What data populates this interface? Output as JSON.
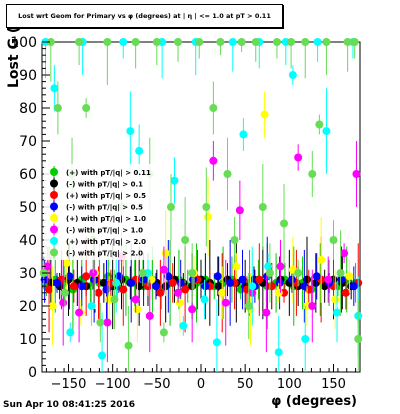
{
  "title": "Lost wrt Geom for Primary vs φ (degrees) at | η | <= 1.0 at pT > 0.11",
  "timestamp": "Sun Apr 10 08:41:25 2016",
  "chart_data": {
    "type": "scatter",
    "title": "Lost wrt Geom for Primary vs φ (degrees) at | η | <= 1.0 at pT > 0.11",
    "xlabel": "φ (degrees)",
    "ylabel": "Lost G (%)",
    "xlim": [
      -180,
      180
    ],
    "ylim": [
      0,
      100
    ],
    "xticks": [
      -150,
      -100,
      -50,
      0,
      50,
      100,
      150
    ],
    "xtick_labels": [
      "−150",
      "−100",
      "−50",
      "0",
      "50",
      "100",
      "150"
    ],
    "yticks": [
      0,
      10,
      20,
      30,
      40,
      50,
      60,
      70,
      80,
      90,
      100
    ],
    "ytick_labels": [
      "0",
      "10",
      "20",
      "30",
      "40",
      "50",
      "60",
      "70",
      "80",
      "90",
      "100"
    ],
    "grid": false,
    "legend_position": "top-left",
    "series": [
      {
        "name": "(+) with pT/|q| > 0.11",
        "color": "#00cc00",
        "marker": "circle",
        "values": [
          [
            -175,
            26
          ],
          [
            -165,
            28
          ],
          [
            -155,
            27
          ],
          [
            -145,
            25
          ],
          [
            -135,
            28
          ],
          [
            -125,
            26
          ],
          [
            -115,
            27
          ],
          [
            -105,
            29
          ],
          [
            -95,
            26
          ],
          [
            -85,
            28
          ],
          [
            -75,
            27
          ],
          [
            -65,
            26
          ],
          [
            -55,
            28
          ],
          [
            -45,
            25
          ],
          [
            -35,
            27
          ],
          [
            -25,
            28
          ],
          [
            -15,
            26
          ],
          [
            -5,
            27
          ],
          [
            5,
            28
          ],
          [
            15,
            26
          ],
          [
            25,
            27
          ],
          [
            35,
            28
          ],
          [
            45,
            25
          ],
          [
            55,
            27
          ],
          [
            65,
            28
          ],
          [
            75,
            26
          ],
          [
            85,
            27
          ],
          [
            95,
            28
          ],
          [
            105,
            26
          ],
          [
            115,
            27
          ],
          [
            125,
            25
          ],
          [
            135,
            28
          ],
          [
            145,
            27
          ],
          [
            155,
            26
          ],
          [
            165,
            28
          ],
          [
            175,
            27
          ]
        ]
      },
      {
        "name": "(-) with pT/|q| > 0.1",
        "color": "#000000",
        "marker": "circle",
        "values": [
          [
            -170,
            27
          ],
          [
            -160,
            26
          ],
          [
            -150,
            28
          ],
          [
            -140,
            27
          ],
          [
            -130,
            26
          ],
          [
            -120,
            28
          ],
          [
            -110,
            27
          ],
          [
            -100,
            26
          ],
          [
            -90,
            28
          ],
          [
            -80,
            27
          ],
          [
            -70,
            26
          ],
          [
            -60,
            28
          ],
          [
            -50,
            27
          ],
          [
            -40,
            26
          ],
          [
            -30,
            28
          ],
          [
            -20,
            27
          ],
          [
            -10,
            26
          ],
          [
            0,
            28
          ],
          [
            10,
            27
          ],
          [
            20,
            26
          ],
          [
            30,
            28
          ],
          [
            40,
            27
          ],
          [
            50,
            26
          ],
          [
            60,
            28
          ],
          [
            70,
            27
          ],
          [
            80,
            26
          ],
          [
            90,
            28
          ],
          [
            100,
            27
          ],
          [
            110,
            26
          ],
          [
            120,
            28
          ],
          [
            130,
            27
          ],
          [
            140,
            26
          ],
          [
            150,
            28
          ],
          [
            160,
            27
          ],
          [
            170,
            26
          ]
        ]
      },
      {
        "name": "(+) with pT/|q| > 0.5",
        "color": "#ff0000",
        "marker": "circle",
        "values": [
          [
            -172,
            25
          ],
          [
            -158,
            28
          ],
          [
            -144,
            26
          ],
          [
            -130,
            29
          ],
          [
            -116,
            24
          ],
          [
            -102,
            27
          ],
          [
            -88,
            25
          ],
          [
            -74,
            28
          ],
          [
            -60,
            26
          ],
          [
            -46,
            24
          ],
          [
            -32,
            27
          ],
          [
            -18,
            25
          ],
          [
            -4,
            28
          ],
          [
            10,
            26
          ],
          [
            24,
            24
          ],
          [
            38,
            27
          ],
          [
            52,
            25
          ],
          [
            66,
            28
          ],
          [
            80,
            26
          ],
          [
            94,
            24
          ],
          [
            108,
            27
          ],
          [
            122,
            25
          ],
          [
            136,
            28
          ],
          [
            150,
            26
          ],
          [
            164,
            24
          ],
          [
            178,
            27
          ]
        ]
      },
      {
        "name": "(-) with pT/|q| > 0.5",
        "color": "#0000ff",
        "marker": "circle",
        "values": [
          [
            -177,
            28
          ],
          [
            -163,
            27
          ],
          [
            -149,
            29
          ],
          [
            -135,
            26
          ],
          [
            -121,
            28
          ],
          [
            -107,
            25
          ],
          [
            -93,
            29
          ],
          [
            -79,
            27
          ],
          [
            -65,
            28
          ],
          [
            -51,
            26
          ],
          [
            -37,
            29
          ],
          [
            -23,
            27
          ],
          [
            -9,
            28
          ],
          [
            5,
            26
          ],
          [
            19,
            29
          ],
          [
            33,
            27
          ],
          [
            47,
            28
          ],
          [
            61,
            26
          ],
          [
            75,
            29
          ],
          [
            89,
            27
          ],
          [
            103,
            28
          ],
          [
            117,
            26
          ],
          [
            131,
            29
          ],
          [
            145,
            27
          ],
          [
            159,
            28
          ],
          [
            173,
            26
          ]
        ]
      },
      {
        "name": "(+) with pT/|q| > 1.0",
        "color": "#ffff00",
        "marker": "circle",
        "values": [
          [
            -168,
            20
          ],
          [
            -152,
            33
          ],
          [
            -136,
            18
          ],
          [
            -120,
            30
          ],
          [
            -104,
            22
          ],
          [
            -88,
            35
          ],
          [
            -72,
            19
          ],
          [
            -56,
            28
          ],
          [
            -40,
            36
          ],
          [
            -24,
            21
          ],
          [
            -8,
            30
          ],
          [
            8,
            47
          ],
          [
            24,
            24
          ],
          [
            40,
            32
          ],
          [
            56,
            19
          ],
          [
            72,
            78
          ],
          [
            88,
            24
          ],
          [
            104,
            31
          ],
          [
            120,
            20
          ],
          [
            136,
            34
          ],
          [
            152,
            22
          ],
          [
            168,
            29
          ]
        ]
      },
      {
        "name": "(-) with pT/|q| > 1.0",
        "color": "#ff00ff",
        "marker": "circle",
        "values": [
          [
            -174,
            32
          ],
          [
            -156,
            21
          ],
          [
            -138,
            18
          ],
          [
            -122,
            30
          ],
          [
            -106,
            15
          ],
          [
            -90,
            35
          ],
          [
            -74,
            22
          ],
          [
            -58,
            17
          ],
          [
            -42,
            31
          ],
          [
            -26,
            24
          ],
          [
            -10,
            19
          ],
          [
            14,
            64
          ],
          [
            28,
            21
          ],
          [
            44,
            49
          ],
          [
            58,
            24
          ],
          [
            74,
            18
          ],
          [
            90,
            32
          ],
          [
            110,
            65
          ],
          [
            126,
            20
          ],
          [
            144,
            28
          ],
          [
            162,
            36
          ],
          [
            176,
            60
          ]
        ]
      },
      {
        "name": "(+) with pT/|q| > 2.0",
        "color": "#00ffff",
        "marker": "circle",
        "values": [
          [
            -176,
            100
          ],
          [
            -166,
            86
          ],
          [
            -148,
            12
          ],
          [
            -134,
            100
          ],
          [
            -124,
            20
          ],
          [
            -112,
            5
          ],
          [
            -96,
            27
          ],
          [
            -88,
            100
          ],
          [
            -80,
            73
          ],
          [
            -70,
            67
          ],
          [
            -60,
            30
          ],
          [
            -44,
            100
          ],
          [
            -30,
            58
          ],
          [
            -20,
            14
          ],
          [
            -6,
            100
          ],
          [
            4,
            22
          ],
          [
            18,
            9
          ],
          [
            36,
            100
          ],
          [
            48,
            72
          ],
          [
            58,
            26
          ],
          [
            66,
            100
          ],
          [
            76,
            32
          ],
          [
            88,
            6
          ],
          [
            96,
            100
          ],
          [
            104,
            90
          ],
          [
            118,
            10
          ],
          [
            132,
            100
          ],
          [
            142,
            73
          ],
          [
            154,
            18
          ],
          [
            172,
            100
          ],
          [
            178,
            17
          ]
        ]
      },
      {
        "name": "(-) with pT/|q| > 2.0",
        "color": "#66dd55",
        "marker": "circle",
        "values": [
          [
            -178,
            30
          ],
          [
            -170,
            100
          ],
          [
            -162,
            80
          ],
          [
            -154,
            24
          ],
          [
            -146,
            60
          ],
          [
            -138,
            100
          ],
          [
            -130,
            80
          ],
          [
            -122,
            40
          ],
          [
            -114,
            15
          ],
          [
            -106,
            100
          ],
          [
            -98,
            22
          ],
          [
            -90,
            50
          ],
          [
            -82,
            8
          ],
          [
            -74,
            100
          ],
          [
            -66,
            30
          ],
          [
            -58,
            60
          ],
          [
            -50,
            100
          ],
          [
            -42,
            12
          ],
          [
            -34,
            50
          ],
          [
            -26,
            100
          ],
          [
            -18,
            40
          ],
          [
            -10,
            30
          ],
          [
            -2,
            100
          ],
          [
            6,
            50
          ],
          [
            14,
            80
          ],
          [
            22,
            100
          ],
          [
            30,
            60
          ],
          [
            38,
            40
          ],
          [
            46,
            100
          ],
          [
            54,
            20
          ],
          [
            62,
            100
          ],
          [
            70,
            50
          ],
          [
            78,
            30
          ],
          [
            86,
            100
          ],
          [
            94,
            45
          ],
          [
            102,
            100
          ],
          [
            110,
            30
          ],
          [
            118,
            100
          ],
          [
            126,
            60
          ],
          [
            134,
            75
          ],
          [
            142,
            100
          ],
          [
            150,
            40
          ],
          [
            158,
            30
          ],
          [
            166,
            100
          ],
          [
            174,
            100
          ],
          [
            178,
            10
          ]
        ]
      }
    ]
  }
}
